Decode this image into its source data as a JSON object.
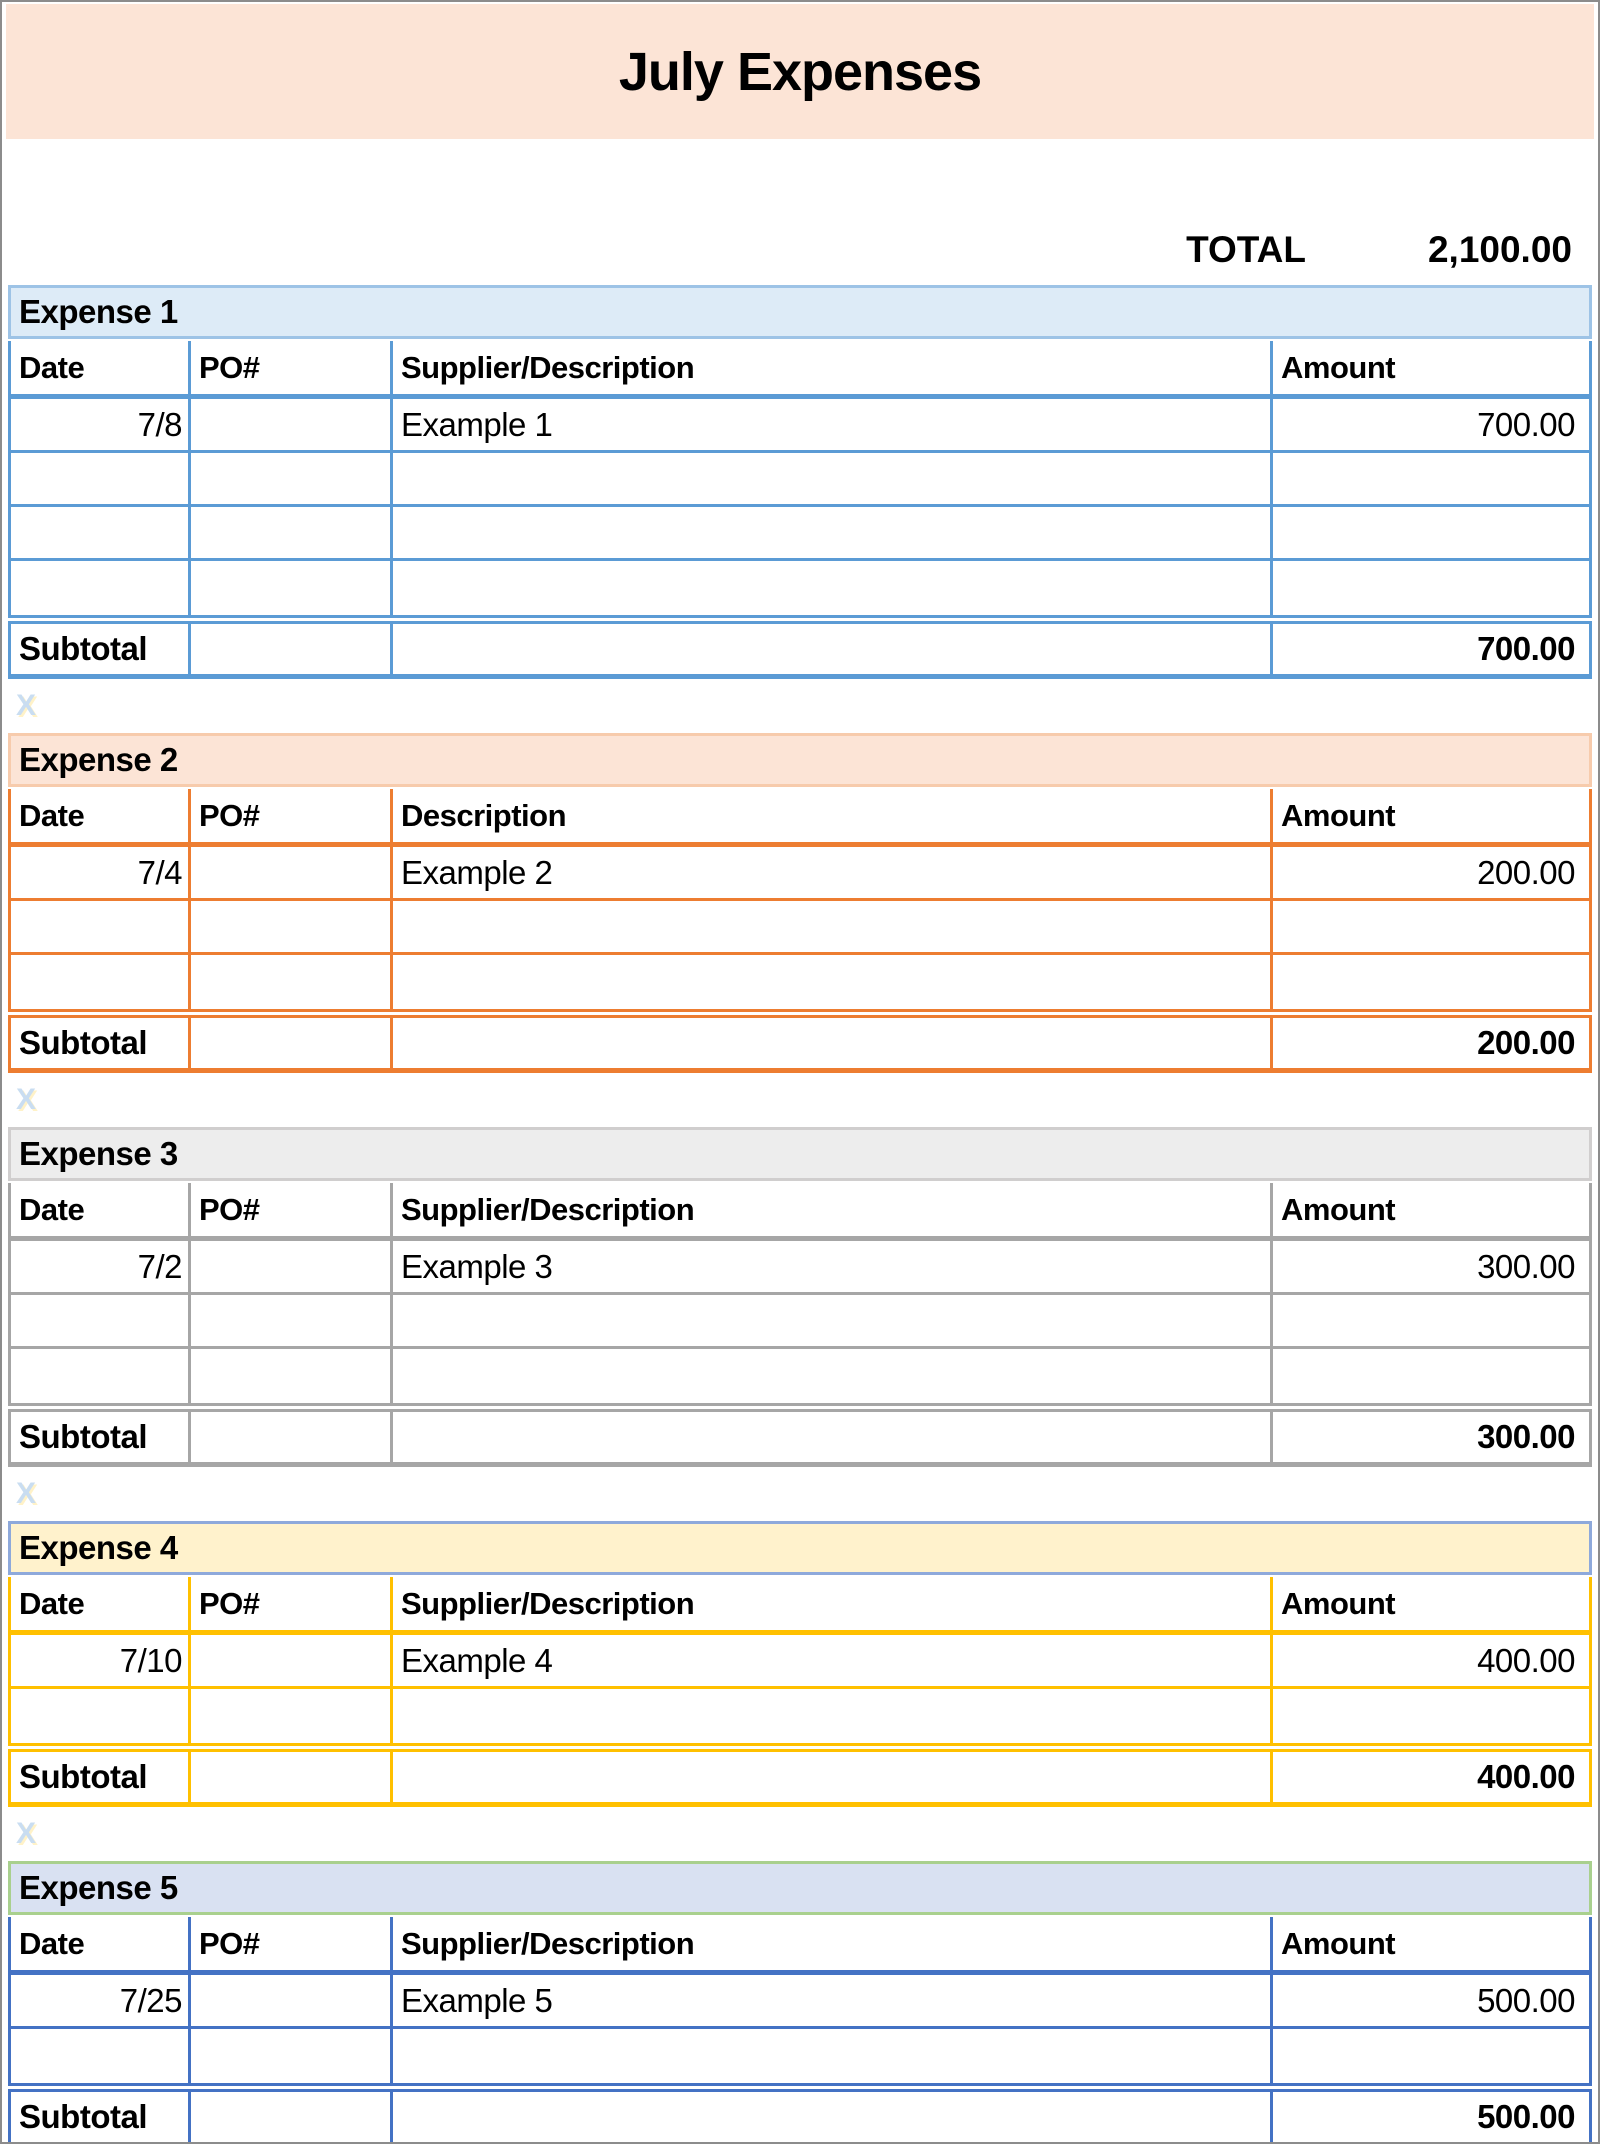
{
  "title": "July Expenses",
  "banner_bg": "#FCE4D6",
  "grand_total": {
    "label": "TOTAL",
    "value": "2,100.00"
  },
  "gap_mark": "X",
  "tables": [
    {
      "name": "Expense 1",
      "columns": [
        "Date",
        "PO#",
        "Supplier/Description",
        "Amount"
      ],
      "rows": [
        [
          "7/8",
          "",
          "Example 1",
          "700.00"
        ],
        [
          "",
          "",
          "",
          ""
        ],
        [
          "",
          "",
          "",
          ""
        ],
        [
          "",
          "",
          "",
          ""
        ]
      ],
      "subtotal": {
        "label": "Subtotal",
        "value": "700.00"
      },
      "colors": {
        "border": "#5B9BD5",
        "band_bg": "#DDEBF7",
        "band_border": "#9DC3E6"
      }
    },
    {
      "name": "Expense 2",
      "columns": [
        "Date",
        "PO#",
        "Description",
        "Amount"
      ],
      "rows": [
        [
          "7/4",
          "",
          "Example 2",
          "200.00"
        ],
        [
          "",
          "",
          "",
          ""
        ],
        [
          "",
          "",
          "",
          ""
        ]
      ],
      "subtotal": {
        "label": "Subtotal",
        "value": "200.00"
      },
      "colors": {
        "border": "#ED7D31",
        "band_bg": "#FCE4D6",
        "band_border": "#F7CBAC"
      }
    },
    {
      "name": "Expense 3",
      "columns": [
        "Date",
        "PO#",
        "Supplier/Description",
        "Amount"
      ],
      "rows": [
        [
          "7/2",
          "",
          "Example 3",
          "300.00"
        ],
        [
          "",
          "",
          "",
          ""
        ],
        [
          "",
          "",
          "",
          ""
        ]
      ],
      "subtotal": {
        "label": "Subtotal",
        "value": "300.00"
      },
      "colors": {
        "border": "#A6A6A6",
        "band_bg": "#EDEDED",
        "band_border": "#D0CECE"
      }
    },
    {
      "name": "Expense 4",
      "columns": [
        "Date",
        "PO#",
        "Supplier/Description",
        "Amount"
      ],
      "rows": [
        [
          "7/10",
          "",
          "Example 4",
          "400.00"
        ],
        [
          "",
          "",
          "",
          ""
        ]
      ],
      "subtotal": {
        "label": "Subtotal",
        "value": "400.00"
      },
      "colors": {
        "border": "#FFC000",
        "band_bg": "#FFF2CC",
        "band_border": "#8EA9DB"
      }
    },
    {
      "name": "Expense 5",
      "columns": [
        "Date",
        "PO#",
        "Supplier/Description",
        "Amount"
      ],
      "rows": [
        [
          "7/25",
          "",
          "Example 5",
          "500.00"
        ],
        [
          "",
          "",
          "",
          ""
        ]
      ],
      "subtotal": {
        "label": "Subtotal",
        "value": "500.00"
      },
      "colors": {
        "border": "#4472C4",
        "band_bg": "#D9E1F2",
        "band_border": "#A9D08E"
      }
    }
  ]
}
